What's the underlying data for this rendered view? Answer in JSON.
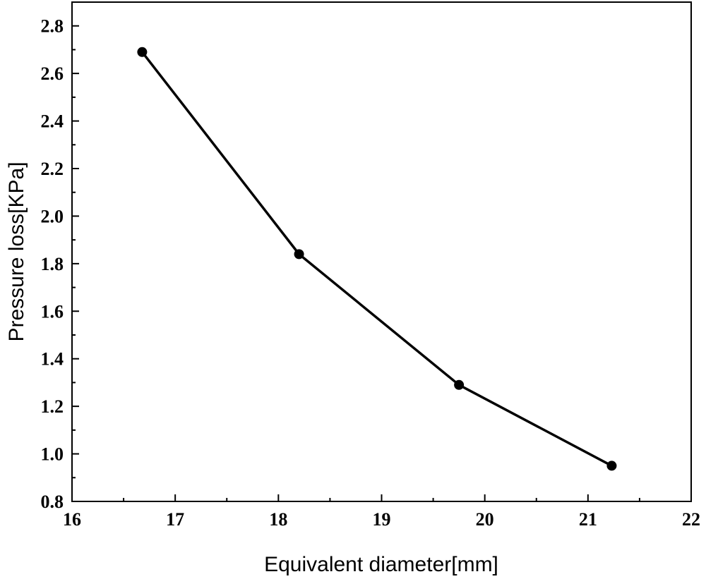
{
  "chart_data": {
    "type": "line",
    "title": "",
    "xlabel": "Equivalent diameter[mm]",
    "ylabel": "Pressure loss[KPa]",
    "xlim": [
      16,
      22
    ],
    "ylim": [
      0.8,
      2.9
    ],
    "xticks": [
      16,
      17,
      18,
      19,
      20,
      21,
      22
    ],
    "xtick_labels": [
      "16",
      "17",
      "18",
      "19",
      "20",
      "21",
      "22"
    ],
    "yticks": [
      0.8,
      1.0,
      1.2,
      1.4,
      1.6,
      1.8,
      2.0,
      2.2,
      2.4,
      2.6,
      2.8
    ],
    "ytick_labels": [
      "0.8",
      "1.0",
      "1.2",
      "1.4",
      "1.6",
      "1.8",
      "2.0",
      "2.2",
      "2.4",
      "2.6",
      "2.8"
    ],
    "grid": false,
    "series": [
      {
        "x": [
          16.68,
          18.2,
          19.75,
          21.23
        ],
        "y": [
          2.69,
          1.84,
          1.29,
          0.95
        ]
      }
    ],
    "colors": {
      "line": "#000000",
      "marker": "#000000",
      "axes": "#000000"
    }
  }
}
